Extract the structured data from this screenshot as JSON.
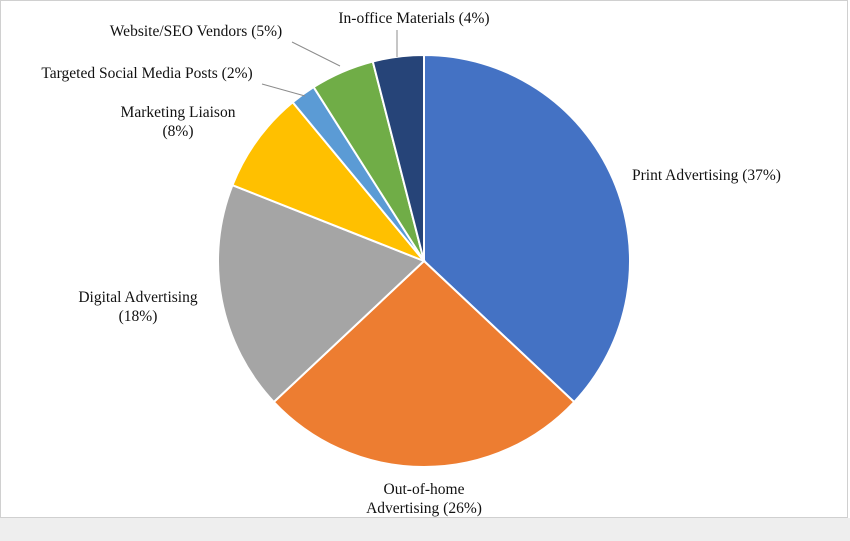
{
  "chart_data": {
    "type": "pie",
    "title": "",
    "slices": [
      {
        "label": [
          "Print Advertising (37%)"
        ],
        "value": 37,
        "color": "#4472C4"
      },
      {
        "label": [
          "Out-of-home",
          "Advertising  (26%)"
        ],
        "value": 26,
        "color": "#ED7D31"
      },
      {
        "label": [
          "Digital Advertising",
          "(18%)"
        ],
        "value": 18,
        "color": "#A5A5A5"
      },
      {
        "label": [
          "Marketing Liaison",
          "(8%)"
        ],
        "value": 8,
        "color": "#FFC000"
      },
      {
        "label": [
          "Targeted Social Media Posts (2%)"
        ],
        "value": 2,
        "color": "#5B9BD5"
      },
      {
        "label": [
          "Website/SEO Vendors (5%)"
        ],
        "value": 5,
        "color": "#70AD47"
      },
      {
        "label": [
          "In-office Materials (4%)"
        ],
        "value": 4,
        "color": "#264478"
      }
    ],
    "start_angle": "12 o'clock",
    "direction": "clockwise",
    "legend": "none"
  }
}
